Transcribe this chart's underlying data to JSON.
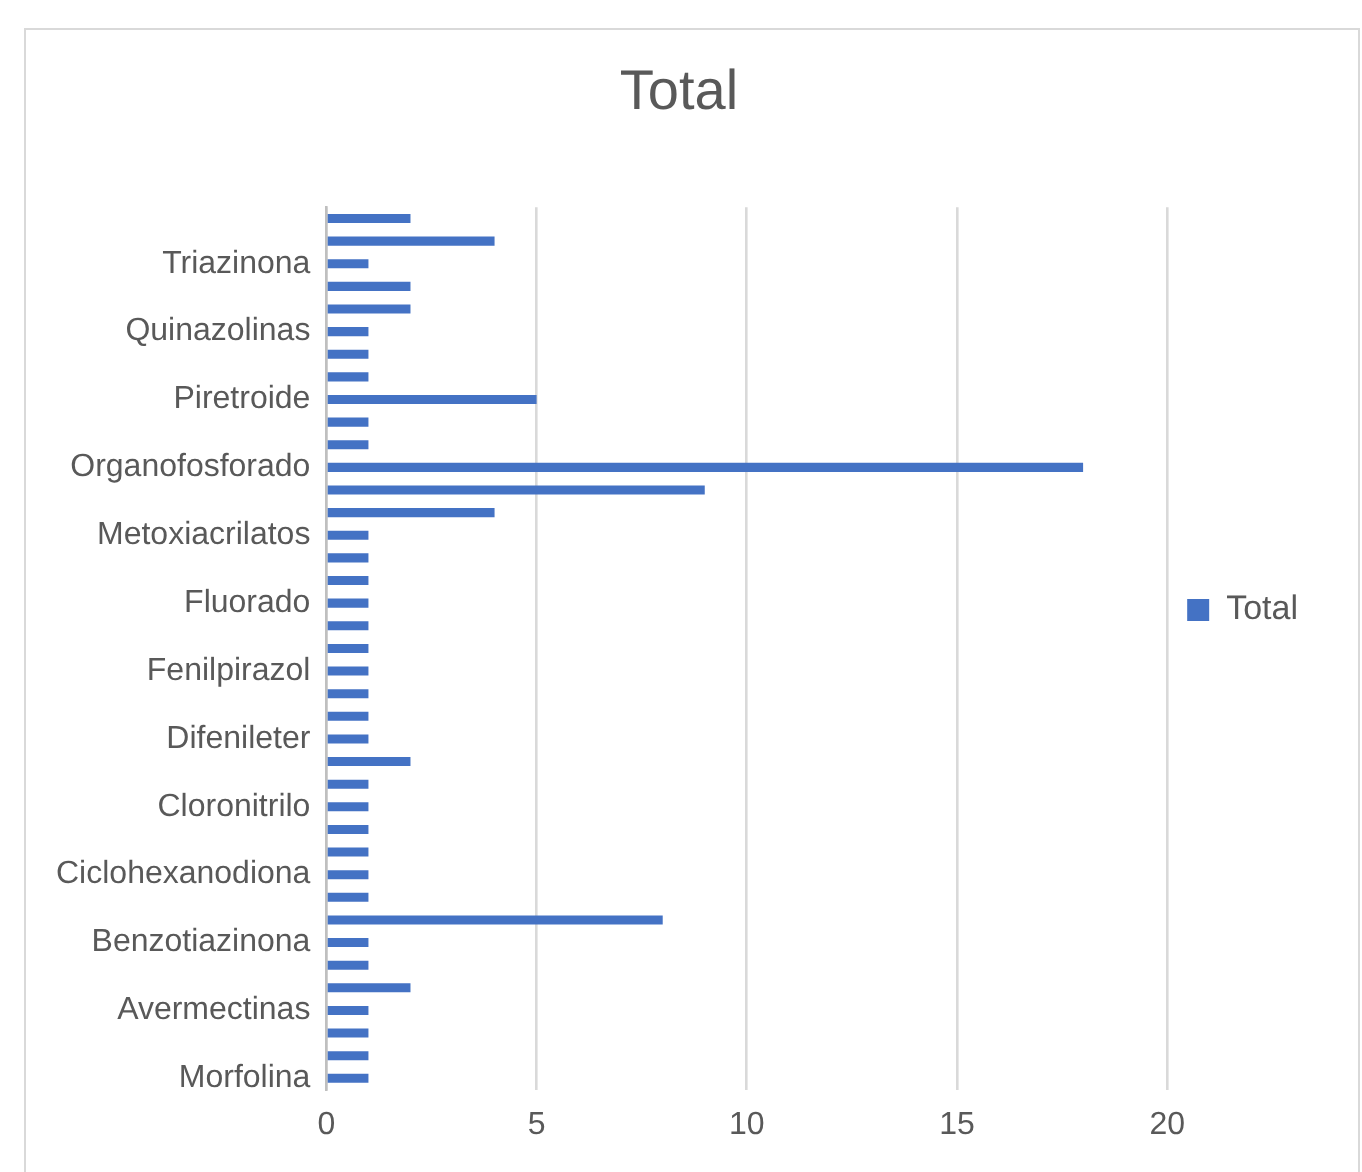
{
  "chart_data": {
    "type": "bar",
    "orientation": "horizontal",
    "title": "Total",
    "categories": [
      null,
      null,
      "Triazinona",
      null,
      null,
      "Quinazolinas",
      null,
      null,
      "Piretroide",
      null,
      null,
      "Organofosforado",
      null,
      null,
      "Metoxiacrilatos",
      null,
      null,
      "Fluorado",
      null,
      null,
      "Fenilpirazol",
      null,
      null,
      "Difenileter",
      null,
      null,
      "Cloronitrilo",
      null,
      null,
      "Ciclohexanodiona",
      null,
      null,
      "Benzotiazinona",
      null,
      null,
      "Avermectinas",
      null,
      null,
      "Morfolina"
    ],
    "series": [
      {
        "name": "Total",
        "color": "#4472c4",
        "values": [
          2,
          4,
          1,
          2,
          2,
          1,
          1,
          1,
          5,
          1,
          1,
          18,
          9,
          4,
          1,
          1,
          1,
          1,
          1,
          1,
          1,
          1,
          1,
          1,
          2,
          1,
          1,
          1,
          1,
          1,
          1,
          8,
          1,
          1,
          2,
          1,
          1,
          1,
          1
        ]
      }
    ],
    "xlim": [
      0,
      20
    ],
    "xticks": [
      0,
      5,
      10,
      15,
      20
    ],
    "grid": "x",
    "legend": "right"
  }
}
